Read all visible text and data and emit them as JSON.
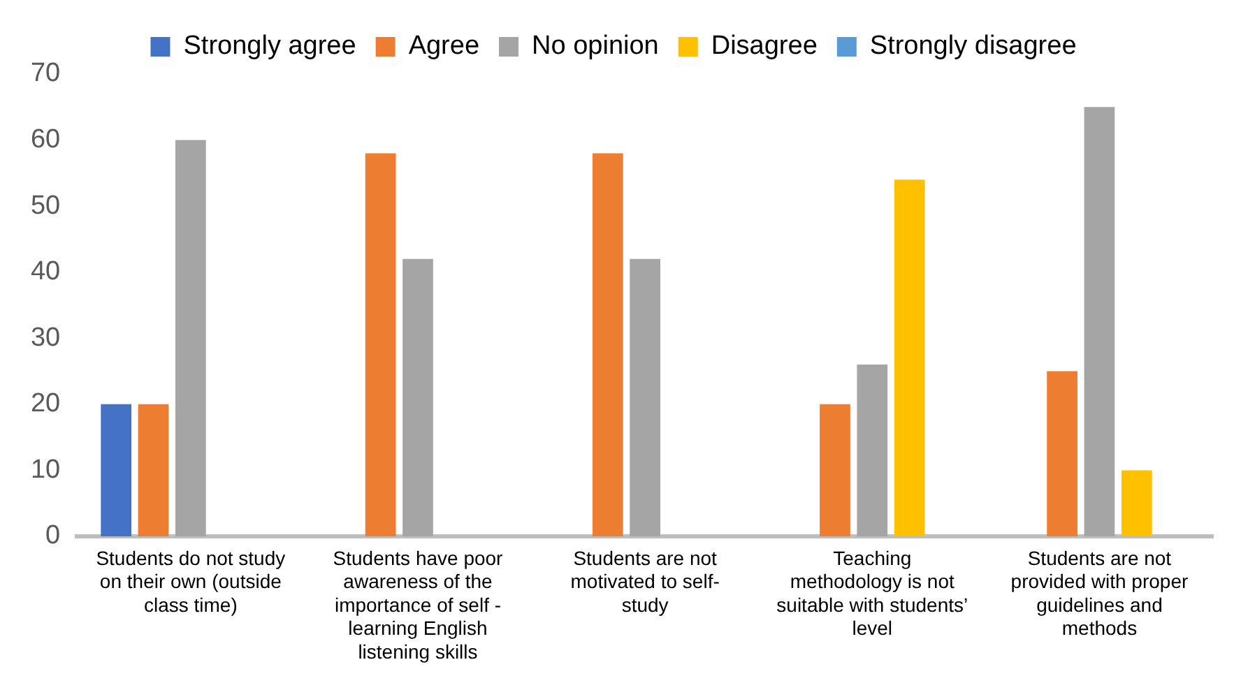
{
  "chart_data": {
    "type": "bar",
    "categories": [
      "Students do not study on their own (outside class time)",
      "Students have poor awareness of the importance of self - learning English listening skills",
      "Students are not motivated to self-study",
      "Teaching methodology is not suitable with students’ level",
      "Students are not provided with proper guidelines and methods"
    ],
    "series": [
      {
        "name": "Strongly agree",
        "color": "#4472c4",
        "values": [
          20,
          0,
          0,
          0,
          0
        ]
      },
      {
        "name": "Agree",
        "color": "#ed7d31",
        "values": [
          20,
          58,
          58,
          20,
          25
        ]
      },
      {
        "name": "No opinion",
        "color": "#a5a5a5",
        "values": [
          60,
          42,
          42,
          26,
          65
        ]
      },
      {
        "name": "Disagree",
        "color": "#ffc000",
        "values": [
          0,
          0,
          0,
          54,
          10
        ]
      },
      {
        "name": "Strongly disagree",
        "color": "#5b9bd5",
        "values": [
          0,
          0,
          0,
          0,
          0
        ]
      }
    ],
    "ylim": [
      0,
      70
    ],
    "yticks": [
      0,
      10,
      20,
      30,
      40,
      50,
      60,
      70
    ],
    "grid": false,
    "legend": "top"
  }
}
